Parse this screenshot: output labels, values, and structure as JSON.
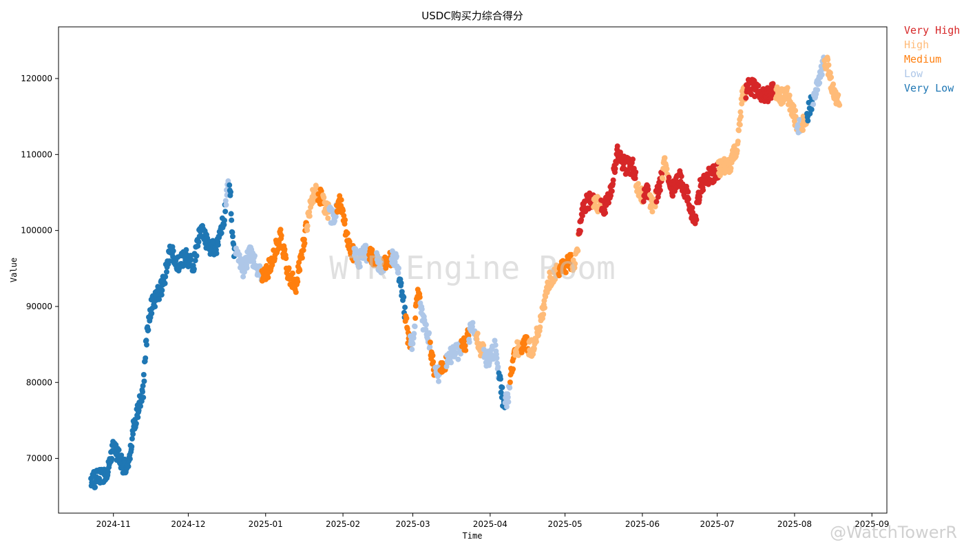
{
  "chart_data": {
    "type": "scatter",
    "title": "USDC购买力综合得分",
    "xlabel": "Time",
    "ylabel": "Value",
    "x_range": [
      "2024-10-10",
      "2025-09-07"
    ],
    "ylim": [
      62800,
      126800
    ],
    "yticks": [
      70000,
      80000,
      90000,
      100000,
      110000,
      120000
    ],
    "xticks": [
      "2024-11",
      "2024-12",
      "2025-01",
      "2025-02",
      "2025-03",
      "2025-04",
      "2025-05",
      "2025-06",
      "2025-07",
      "2025-08",
      "2025-09"
    ],
    "grid": false,
    "legend_position": "outside-top-right",
    "legend": [
      {
        "name": "Very High",
        "color": "#d62728"
      },
      {
        "name": "High",
        "color": "#ffbb78"
      },
      {
        "name": "Medium",
        "color": "#ff7f0e"
      },
      {
        "name": "Low",
        "color": "#aec7e8"
      },
      {
        "name": "Very Low",
        "color": "#1f77b4"
      }
    ],
    "category_colors": {
      "VH": "#d62728",
      "H": "#ffbb78",
      "M": "#ff7f0e",
      "L": "#aec7e8",
      "VL": "#1f77b4"
    },
    "points": [
      [
        "2024-10-23",
        67000,
        "VL"
      ],
      [
        "2024-10-26",
        67500,
        "VL"
      ],
      [
        "2024-10-29",
        68000,
        "VL"
      ],
      [
        "2024-11-01",
        71500,
        "VL"
      ],
      [
        "2024-11-03",
        70500,
        "VL"
      ],
      [
        "2024-11-05",
        69000,
        "VL"
      ],
      [
        "2024-11-07",
        68500,
        "VL"
      ],
      [
        "2024-11-09",
        74000,
        "VL"
      ],
      [
        "2024-11-11",
        76500,
        "VL"
      ],
      [
        "2024-11-13",
        79000,
        "VL"
      ],
      [
        "2024-11-14",
        85000,
        "VL"
      ],
      [
        "2024-11-16",
        90000,
        "VL"
      ],
      [
        "2024-11-18",
        91000,
        "VL"
      ],
      [
        "2024-11-21",
        93000,
        "VL"
      ],
      [
        "2024-11-24",
        97500,
        "VL"
      ],
      [
        "2024-11-27",
        95500,
        "VL"
      ],
      [
        "2024-11-30",
        96500,
        "VL"
      ],
      [
        "2024-12-03",
        95500,
        "VL"
      ],
      [
        "2024-12-06",
        100000,
        "VL"
      ],
      [
        "2024-12-09",
        98000,
        "VL"
      ],
      [
        "2024-12-12",
        97500,
        "VL"
      ],
      [
        "2024-12-15",
        101000,
        "VL"
      ],
      [
        "2024-12-17",
        106000,
        "L"
      ],
      [
        "2024-12-18",
        104000,
        "VL"
      ],
      [
        "2024-12-19",
        97500,
        "VL"
      ],
      [
        "2024-12-21",
        96500,
        "L"
      ],
      [
        "2024-12-23",
        95000,
        "L"
      ],
      [
        "2024-12-26",
        97000,
        "L"
      ],
      [
        "2024-12-29",
        94500,
        "L"
      ],
      [
        "2025-01-01",
        94000,
        "M"
      ],
      [
        "2025-01-04",
        96500,
        "M"
      ],
      [
        "2025-01-07",
        99500,
        "M"
      ],
      [
        "2025-01-10",
        94500,
        "M"
      ],
      [
        "2025-01-13",
        92500,
        "M"
      ],
      [
        "2025-01-16",
        98000,
        "M"
      ],
      [
        "2025-01-19",
        103500,
        "H"
      ],
      [
        "2025-01-21",
        105500,
        "H"
      ],
      [
        "2025-01-23",
        104500,
        "M"
      ],
      [
        "2025-01-25",
        103000,
        "H"
      ],
      [
        "2025-01-28",
        101500,
        "L"
      ],
      [
        "2025-01-31",
        104000,
        "M"
      ],
      [
        "2025-02-02",
        100500,
        "M"
      ],
      [
        "2025-02-04",
        97500,
        "M"
      ],
      [
        "2025-02-07",
        96000,
        "L"
      ],
      [
        "2025-02-10",
        97000,
        "L"
      ],
      [
        "2025-02-13",
        96500,
        "M"
      ],
      [
        "2025-02-16",
        95500,
        "L"
      ],
      [
        "2025-02-19",
        96000,
        "M"
      ],
      [
        "2025-02-22",
        96500,
        "L"
      ],
      [
        "2025-02-25",
        91500,
        "VL"
      ],
      [
        "2025-02-27",
        86000,
        "M"
      ],
      [
        "2025-03-01",
        85000,
        "L"
      ],
      [
        "2025-03-03",
        92000,
        "M"
      ],
      [
        "2025-03-05",
        88000,
        "L"
      ],
      [
        "2025-03-07",
        86500,
        "L"
      ],
      [
        "2025-03-09",
        82500,
        "M"
      ],
      [
        "2025-03-11",
        80500,
        "L"
      ],
      [
        "2025-03-13",
        82000,
        "M"
      ],
      [
        "2025-03-16",
        83500,
        "L"
      ],
      [
        "2025-03-19",
        84000,
        "L"
      ],
      [
        "2025-03-22",
        85000,
        "M"
      ],
      [
        "2025-03-25",
        87500,
        "L"
      ],
      [
        "2025-03-28",
        84500,
        "H"
      ],
      [
        "2025-03-31",
        83000,
        "L"
      ],
      [
        "2025-04-03",
        84500,
        "L"
      ],
      [
        "2025-04-06",
        78000,
        "VL"
      ],
      [
        "2025-04-08",
        77500,
        "L"
      ],
      [
        "2025-04-10",
        82500,
        "M"
      ],
      [
        "2025-04-12",
        84500,
        "H"
      ],
      [
        "2025-04-15",
        85000,
        "M"
      ],
      [
        "2025-04-18",
        84500,
        "H"
      ],
      [
        "2025-04-21",
        87500,
        "H"
      ],
      [
        "2025-04-24",
        93000,
        "H"
      ],
      [
        "2025-04-27",
        94500,
        "H"
      ],
      [
        "2025-04-30",
        95000,
        "M"
      ],
      [
        "2025-05-03",
        96000,
        "M"
      ],
      [
        "2025-05-05",
        95500,
        "H"
      ],
      [
        "2025-05-08",
        103000,
        "VH"
      ],
      [
        "2025-05-11",
        104000,
        "VH"
      ],
      [
        "2025-05-14",
        103500,
        "H"
      ],
      [
        "2025-05-17",
        103000,
        "VH"
      ],
      [
        "2025-05-20",
        106000,
        "VH"
      ],
      [
        "2025-05-22",
        110500,
        "VH"
      ],
      [
        "2025-05-25",
        108500,
        "VH"
      ],
      [
        "2025-05-28",
        108500,
        "VH"
      ],
      [
        "2025-05-31",
        104500,
        "H"
      ],
      [
        "2025-06-03",
        105000,
        "VH"
      ],
      [
        "2025-06-05",
        103000,
        "H"
      ],
      [
        "2025-06-08",
        106000,
        "VH"
      ],
      [
        "2025-06-10",
        109000,
        "H"
      ],
      [
        "2025-06-13",
        105500,
        "VH"
      ],
      [
        "2025-06-16",
        107000,
        "VH"
      ],
      [
        "2025-06-19",
        104500,
        "VH"
      ],
      [
        "2025-06-22",
        101000,
        "VH"
      ],
      [
        "2025-06-24",
        105500,
        "VH"
      ],
      [
        "2025-06-27",
        107000,
        "VH"
      ],
      [
        "2025-06-30",
        107500,
        "VH"
      ],
      [
        "2025-07-03",
        108500,
        "H"
      ],
      [
        "2025-07-06",
        108500,
        "H"
      ],
      [
        "2025-07-09",
        111000,
        "H"
      ],
      [
        "2025-07-11",
        117500,
        "H"
      ],
      [
        "2025-07-14",
        119000,
        "VH"
      ],
      [
        "2025-07-17",
        118500,
        "VH"
      ],
      [
        "2025-07-20",
        117500,
        "VH"
      ],
      [
        "2025-07-23",
        118500,
        "VH"
      ],
      [
        "2025-07-26",
        117500,
        "H"
      ],
      [
        "2025-07-29",
        118000,
        "H"
      ],
      [
        "2025-08-01",
        115000,
        "H"
      ],
      [
        "2025-08-03",
        113500,
        "L"
      ],
      [
        "2025-08-05",
        114500,
        "H"
      ],
      [
        "2025-08-07",
        116000,
        "VL"
      ],
      [
        "2025-08-10",
        119000,
        "L"
      ],
      [
        "2025-08-12",
        121500,
        "L"
      ],
      [
        "2025-08-14",
        122500,
        "H"
      ],
      [
        "2025-08-16",
        118500,
        "H"
      ],
      [
        "2025-08-19",
        116500,
        "H"
      ]
    ]
  },
  "watermark": {
    "text": "WTR Engine Room",
    "credit": "@WatchTowerR"
  }
}
